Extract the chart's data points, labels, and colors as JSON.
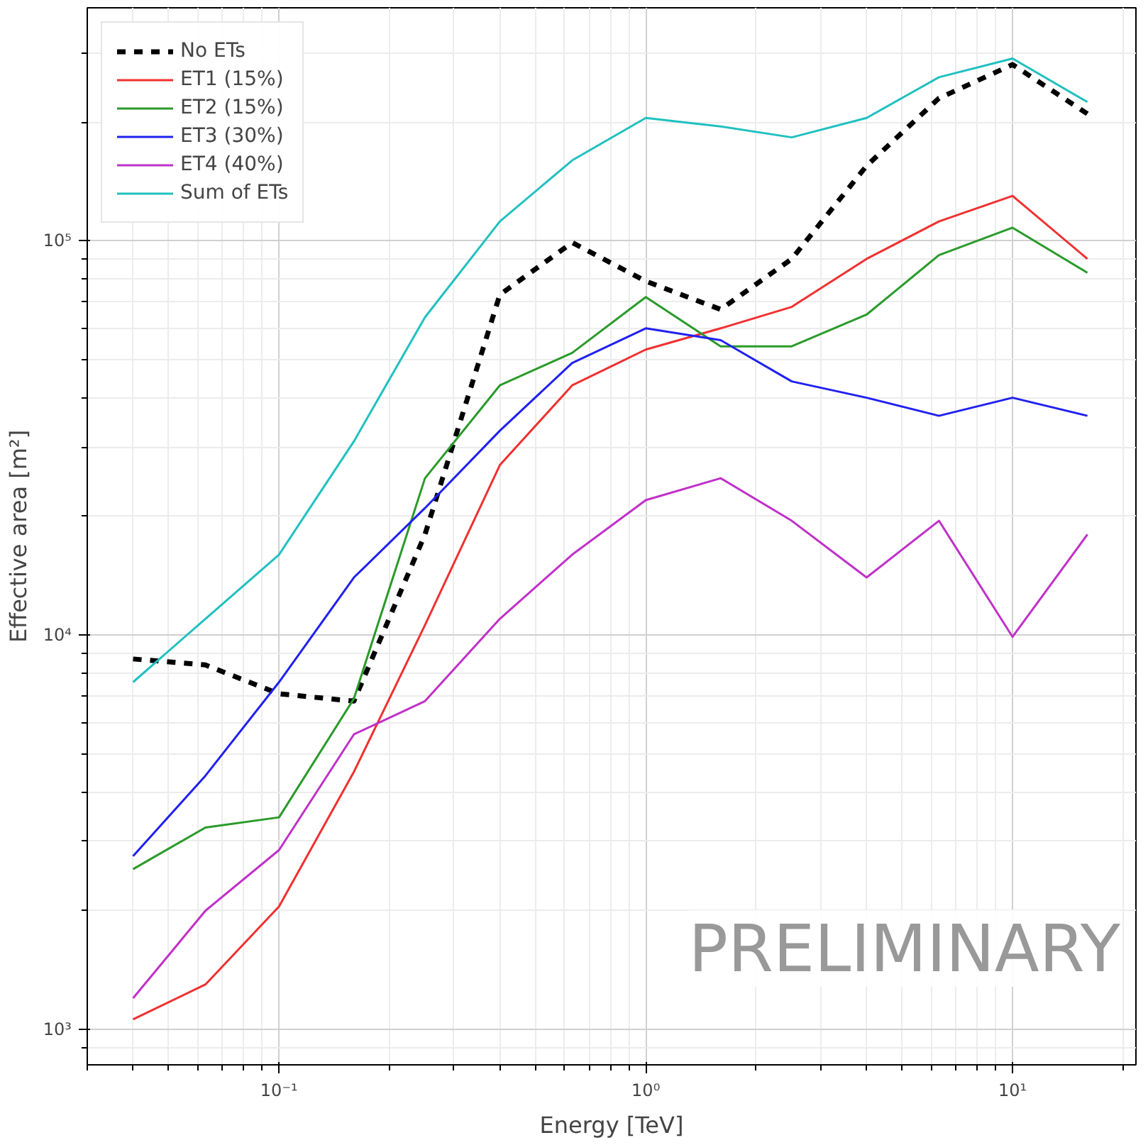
{
  "chart_data": {
    "type": "line",
    "xlabel": "Energy [TeV]",
    "ylabel": "Effective area [m²]",
    "x": [
      0.04,
      0.063,
      0.1,
      0.16,
      0.25,
      0.4,
      0.63,
      1,
      1.6,
      2.5,
      4,
      6.3,
      10,
      16
    ],
    "series": [
      {
        "name": "No ETs",
        "color": "#000000",
        "line_style": "dashed",
        "values": [
          8700,
          8400,
          7100,
          6800,
          18000,
          73000,
          99000,
          79000,
          67000,
          90000,
          155000,
          230000,
          280000,
          210000
        ]
      },
      {
        "name": "ET1 (15%)",
        "color": "#f03030",
        "values": [
          1060,
          1300,
          2050,
          4500,
          10600,
          27000,
          43000,
          53000,
          60000,
          68000,
          90000,
          112000,
          130000,
          90000
        ]
      },
      {
        "name": "ET2 (15%)",
        "color": "#2a9a2a",
        "values": [
          2550,
          3250,
          3450,
          6900,
          25000,
          43000,
          52000,
          72000,
          54000,
          54000,
          65000,
          92000,
          108000,
          83000
        ]
      },
      {
        "name": "ET3 (30%)",
        "color": "#2020f0",
        "values": [
          2750,
          4400,
          7600,
          14000,
          21000,
          33000,
          49000,
          60000,
          56000,
          44000,
          40000,
          36000,
          40000,
          36000
        ]
      },
      {
        "name": "ET4 (40%)",
        "color": "#c030c8",
        "values": [
          1200,
          2000,
          2850,
          5600,
          6800,
          11000,
          16000,
          22000,
          25000,
          19500,
          14000,
          19500,
          9900,
          18000
        ]
      },
      {
        "name": "Sum of ETs",
        "color": "#20c0c0",
        "values": [
          7600,
          11000,
          16000,
          31000,
          64000,
          112000,
          160000,
          205000,
          195000,
          183000,
          205000,
          260000,
          290000,
          225000
        ]
      }
    ],
    "log": "xy",
    "xlim": [
      0.03,
      21.7
    ],
    "ylim": [
      813,
      390000
    ],
    "xticks": [
      {
        "value": 0.1,
        "label": "10⁻¹"
      },
      {
        "value": 1,
        "label": "10⁰"
      },
      {
        "value": 10,
        "label": "10¹"
      }
    ],
    "yticks": [
      {
        "value": 1000,
        "label": "10³"
      },
      {
        "value": 10000,
        "label": "10⁴"
      },
      {
        "value": 100000,
        "label": "10⁵"
      }
    ],
    "grid": true,
    "legend": "top left",
    "marker": "none",
    "line_style": "solid",
    "annotations": [
      "PRELIMINARY"
    ]
  }
}
